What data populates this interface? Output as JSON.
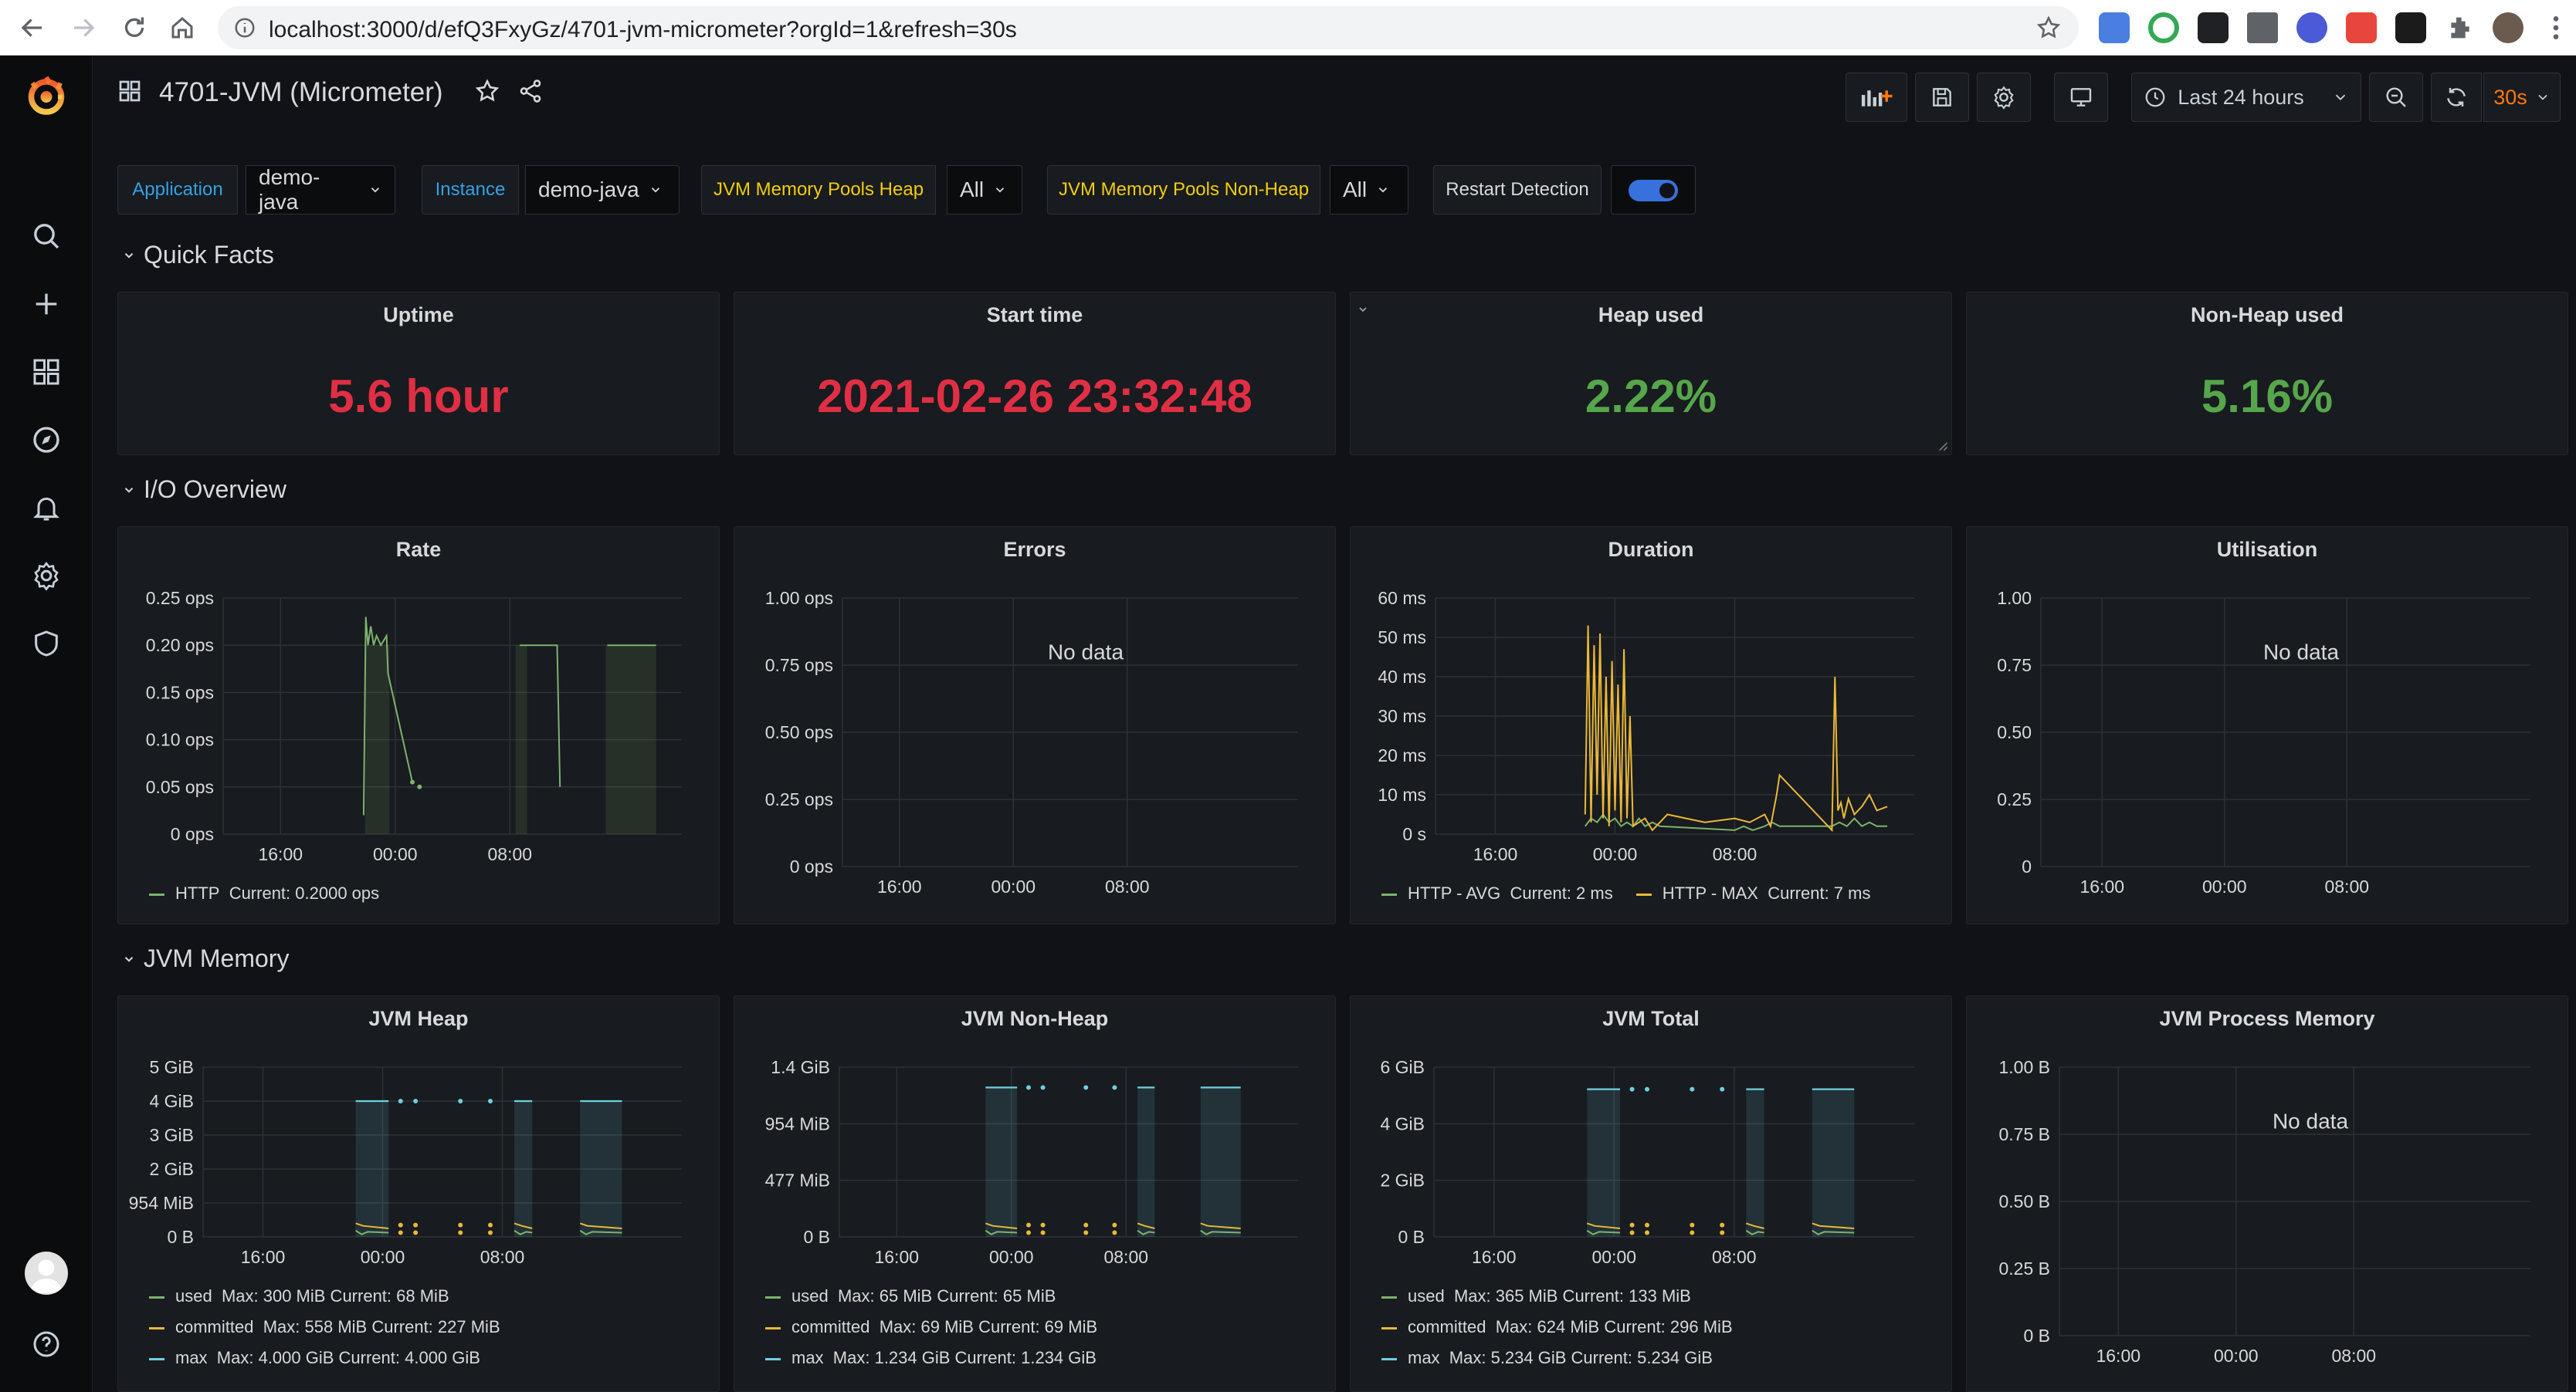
{
  "browser": {
    "url": "localhost:3000/d/efQ3FxyGz/4701-jvm-micrometer?orgId=1&refresh=30s"
  },
  "dashboard": {
    "title": "4701-JVM (Micrometer)",
    "time_range": "Last 24 hours",
    "refresh": "30s"
  },
  "variables": [
    {
      "label": "Application",
      "value": "demo-java"
    },
    {
      "label": "Instance",
      "value": "demo-java"
    },
    {
      "label": "JVM Memory Pools Heap",
      "value": "All"
    },
    {
      "label": "JVM Memory Pools Non-Heap",
      "value": "All"
    },
    {
      "label": "Restart Detection",
      "value": "on"
    }
  ],
  "rows": {
    "quick_facts": "Quick Facts",
    "io_overview": "I/O Overview",
    "jvm_memory": "JVM Memory"
  },
  "stats": [
    {
      "title": "Uptime",
      "value": "5.6 hour",
      "color": "#e02f44"
    },
    {
      "title": "Start time",
      "value": "2021-02-26 23:32:48",
      "color": "#e02f44"
    },
    {
      "title": "Heap used",
      "value": "2.22%",
      "color": "#56a64b"
    },
    {
      "title": "Non-Heap used",
      "value": "5.16%",
      "color": "#56a64b"
    }
  ],
  "colors": {
    "green": "#7eb26d",
    "yellow": "#eab839",
    "cyan": "#6ed0e0",
    "red": "#e02f44",
    "statgreen": "#56a64b",
    "blue": "#33a2e5"
  },
  "no_data": "No data",
  "x_ticks": [
    "16:00",
    "00:00",
    "08:00"
  ],
  "chart_data": [
    {
      "type": "line",
      "title": "Rate",
      "yticks": [
        "0.25 ops",
        "0.20 ops",
        "0.15 ops",
        "0.10 ops",
        "0.05 ops",
        "0 ops"
      ],
      "ylim": [
        0,
        0.25
      ],
      "series": [
        {
          "name": "HTTP",
          "legend": "Current: 0.2000 ops",
          "color": "#7eb26d",
          "x": [
            9.8,
            9.95,
            10.1,
            10.3,
            10.5,
            10.7,
            11,
            11.4,
            11.5,
            13.2,
            13.5,
            13.7,
            20.5,
            20.7,
            21.0,
            23.3,
            23.5,
            24.0,
            26.8,
            27.2,
            28.5,
            30.2
          ],
          "values": [
            0.02,
            0.23,
            0.2,
            0.22,
            0.2,
            0.21,
            0.2,
            0.21,
            0.17,
            0.055,
            null,
            0.05,
            null,
            0.2,
            0.2,
            0.2,
            0.05,
            null,
            0.2,
            0.2,
            0.2,
            0.2
          ]
        }
      ]
    },
    {
      "type": "line",
      "title": "Errors",
      "yticks": [
        "1.00 ops",
        "0.75 ops",
        "0.50 ops",
        "0.25 ops",
        "0 ops"
      ],
      "ylim": [
        0,
        1
      ],
      "series": []
    },
    {
      "type": "line",
      "title": "Duration",
      "yticks": [
        "60 ms",
        "50 ms",
        "40 ms",
        "30 ms",
        "20 ms",
        "10 ms",
        "0 s"
      ],
      "ylim": [
        0,
        60
      ],
      "series": [
        {
          "name": "HTTP - AVG",
          "legend": "Current: 2 ms",
          "color": "#7eb26d",
          "x": [
            10,
            10.4,
            10.8,
            11.2,
            11.6,
            12,
            12.4,
            12.8,
            13.2,
            13.6,
            14,
            14.5,
            15,
            20,
            20.6,
            21.2,
            22,
            22.5,
            23,
            26.5,
            27,
            27.5,
            28,
            28.5,
            29,
            29.5,
            30.2
          ],
          "values": [
            2,
            4,
            3,
            5,
            3,
            4,
            2,
            3,
            2,
            4,
            2,
            3,
            2,
            1,
            2,
            1,
            2,
            3,
            2,
            2,
            3,
            2,
            4,
            2,
            3,
            2,
            2
          ]
        },
        {
          "name": "HTTP - MAX",
          "legend": "Current: 7 ms",
          "color": "#eab839",
          "x": [
            10,
            10.2,
            10.4,
            10.6,
            10.8,
            11,
            11.2,
            11.4,
            11.6,
            11.8,
            12,
            12.2,
            12.4,
            12.6,
            12.8,
            13,
            13.2,
            14,
            14.5,
            15.5,
            18,
            20,
            21,
            22,
            22.4,
            22.8,
            23,
            26.5,
            26.7,
            26.9,
            27.1,
            27.3,
            27.6,
            28,
            28.5,
            29,
            29.5,
            30.2
          ],
          "values": [
            5,
            53,
            3,
            48,
            10,
            51,
            4,
            40,
            2,
            44,
            6,
            38,
            3,
            47,
            4,
            30,
            2,
            4,
            1,
            5,
            3,
            4,
            3,
            5,
            2,
            10,
            15,
            1,
            40,
            6,
            8,
            4,
            9,
            5,
            7,
            10,
            6,
            7
          ]
        }
      ]
    },
    {
      "type": "line",
      "title": "Utilisation",
      "yticks": [
        "1.00",
        "0.75",
        "0.50",
        "0.25",
        "0"
      ],
      "ylim": [
        0,
        1
      ],
      "series": []
    },
    {
      "type": "area",
      "title": "JVM Heap",
      "yticks": [
        "5 GiB",
        "4 GiB",
        "3 GiB",
        "2 GiB",
        "954 MiB",
        "0 B"
      ],
      "ylim": [
        0,
        5
      ],
      "series": [
        {
          "name": "used",
          "legend": "Max: 300 MiB  Current: 68 MiB",
          "color": "#7eb26d"
        },
        {
          "name": "committed",
          "legend": "Max: 558 MiB  Current: 227 MiB",
          "color": "#eab839"
        },
        {
          "name": "max",
          "legend": "Max: 4.000 GiB  Current: 4.000 GiB",
          "color": "#6ed0e0"
        }
      ]
    },
    {
      "type": "area",
      "title": "JVM Non-Heap",
      "yticks": [
        "1.4 GiB",
        "954 MiB",
        "477 MiB",
        "0 B"
      ],
      "ylim": [
        0,
        1.4
      ],
      "series": [
        {
          "name": "used",
          "legend": "Max: 65 MiB  Current: 65 MiB",
          "color": "#7eb26d"
        },
        {
          "name": "committed",
          "legend": "Max: 69 MiB  Current: 69 MiB",
          "color": "#eab839"
        },
        {
          "name": "max",
          "legend": "Max: 1.234 GiB  Current: 1.234 GiB",
          "color": "#6ed0e0"
        }
      ]
    },
    {
      "type": "area",
      "title": "JVM Total",
      "yticks": [
        "6 GiB",
        "4 GiB",
        "2 GiB",
        "0 B"
      ],
      "ylim": [
        0,
        6
      ],
      "series": [
        {
          "name": "used",
          "legend": "Max: 365 MiB  Current: 133 MiB",
          "color": "#7eb26d"
        },
        {
          "name": "committed",
          "legend": "Max: 624 MiB  Current: 296 MiB",
          "color": "#eab839"
        },
        {
          "name": "max",
          "legend": "Max: 5.234 GiB  Current: 5.234 GiB",
          "color": "#6ed0e0"
        }
      ]
    },
    {
      "type": "line",
      "title": "JVM Process Memory",
      "yticks": [
        "1.00 B",
        "0.75 B",
        "0.50 B",
        "0.25 B",
        "0 B"
      ],
      "ylim": [
        0,
        1
      ],
      "series": []
    }
  ]
}
